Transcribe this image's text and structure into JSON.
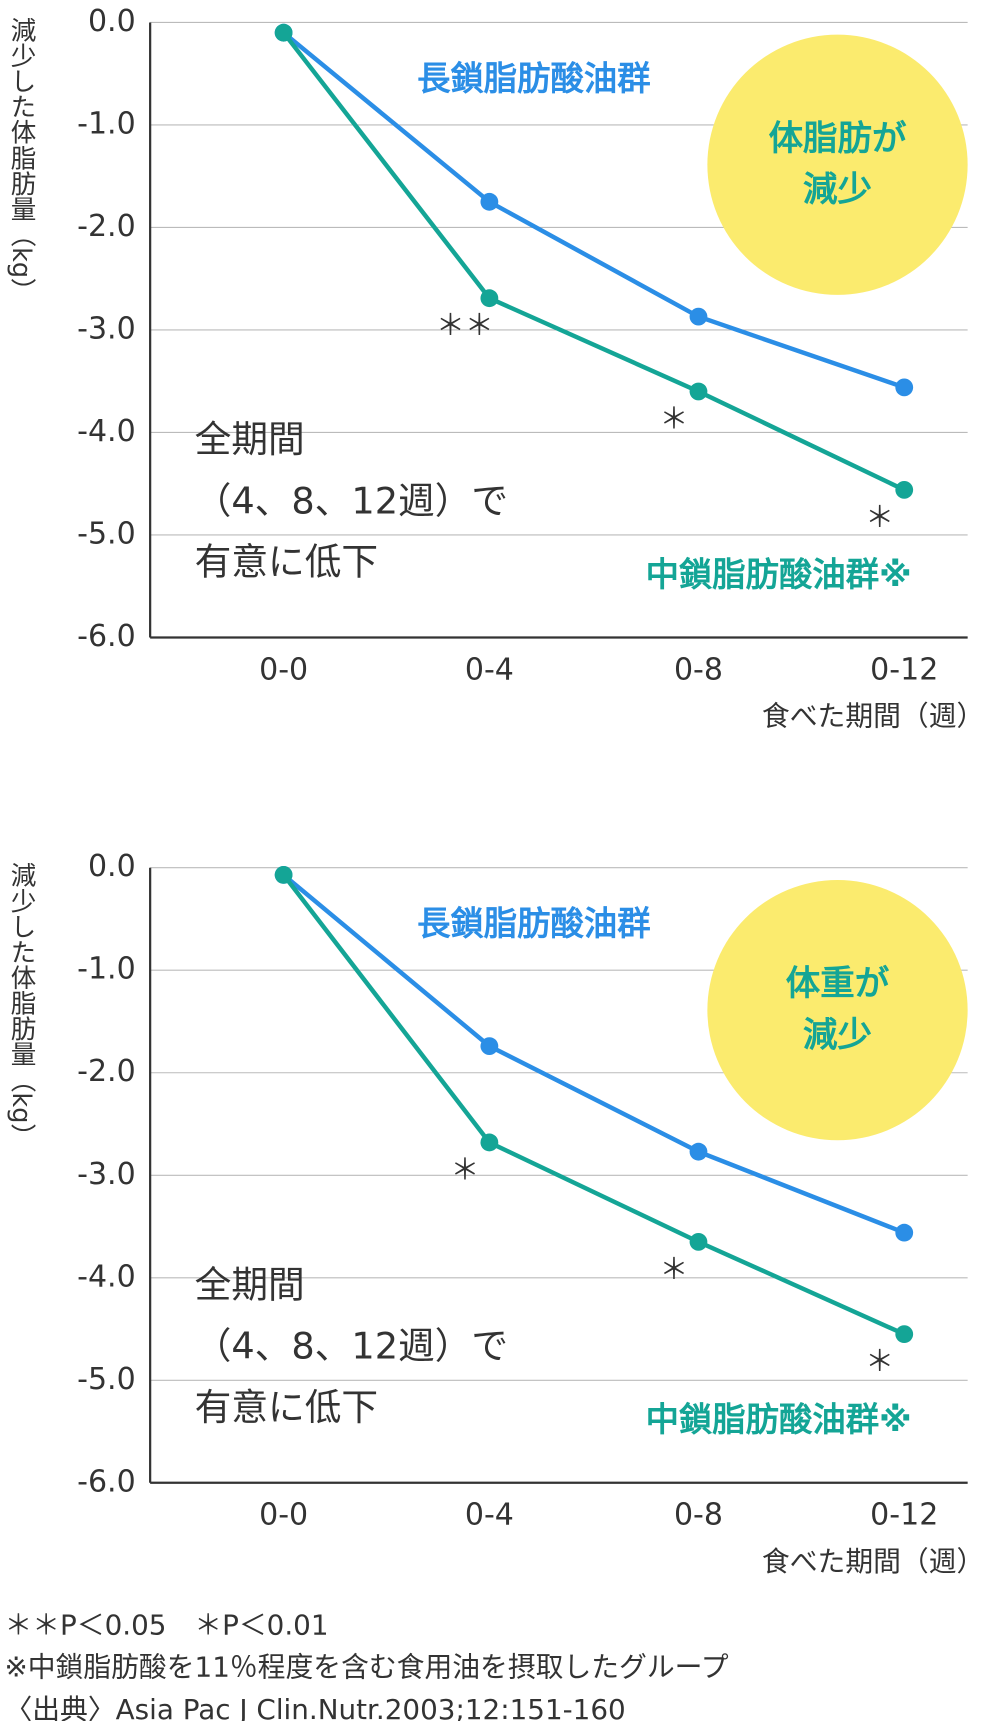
{
  "chart_data": [
    {
      "type": "line",
      "ylabel": "減少した体脂肪量（kg）",
      "xlabel": "食べた期間（週）",
      "categories": [
        "0-0",
        "0-4",
        "0-8",
        "0-12"
      ],
      "ylim": [
        0,
        -6
      ],
      "yticks": [
        {
          "value": 0,
          "label": "0.0"
        },
        {
          "value": -1,
          "label": "-1.0"
        },
        {
          "value": -2,
          "label": "-2.0"
        },
        {
          "value": -3,
          "label": "-3.0"
        },
        {
          "value": -4,
          "label": "-4.0"
        },
        {
          "value": -5,
          "label": "-5.0"
        },
        {
          "value": -6,
          "label": "-6.0"
        }
      ],
      "grid": true,
      "series": [
        {
          "name": "長鎖脂肪酸油群",
          "color": "#2b8ee6",
          "values": [
            -0.1,
            -1.75,
            -2.87,
            -3.56
          ]
        },
        {
          "name": "中鎖脂肪酸油群※",
          "color": "#14a596",
          "values": [
            -0.1,
            -2.69,
            -3.6,
            -4.56
          ],
          "markers": [
            null,
            "＊＊",
            "＊",
            "＊"
          ]
        }
      ],
      "callout": [
        "体脂肪が",
        "減少"
      ],
      "note": [
        "全期間",
        "（4、8、12週）で",
        "有意に低下"
      ]
    },
    {
      "type": "line",
      "ylabel": "減少した体脂肪量（kg）",
      "xlabel": "食べた期間（週）",
      "categories": [
        "0-0",
        "0-4",
        "0-8",
        "0-12"
      ],
      "ylim": [
        0,
        -6
      ],
      "yticks": [
        {
          "value": 0,
          "label": "0.0"
        },
        {
          "value": -1,
          "label": "-1.0"
        },
        {
          "value": -2,
          "label": "-2.0"
        },
        {
          "value": -3,
          "label": "-3.0"
        },
        {
          "value": -4,
          "label": "-4.0"
        },
        {
          "value": -5,
          "label": "-5.0"
        },
        {
          "value": -6,
          "label": "-6.0"
        }
      ],
      "grid": true,
      "series": [
        {
          "name": "長鎖脂肪酸油群",
          "color": "#2b8ee6",
          "values": [
            -0.07,
            -1.74,
            -2.77,
            -3.56
          ]
        },
        {
          "name": "中鎖脂肪酸油群※",
          "color": "#14a596",
          "values": [
            -0.07,
            -2.68,
            -3.65,
            -4.55
          ],
          "markers": [
            null,
            "＊",
            "＊",
            "＊"
          ]
        }
      ],
      "callout": [
        "体重が",
        "減少"
      ],
      "note": [
        "全期間",
        "（4、8、12週）で",
        "有意に低下"
      ]
    }
  ],
  "footnotes": [
    "＊＊P＜0.05　＊P＜0.01",
    "※中鎖脂肪酸を11％程度を含む食用油を摂取したグループ",
    "〈出典〉Asia Pac J Clin.Nutr.2003;12:151-160"
  ]
}
